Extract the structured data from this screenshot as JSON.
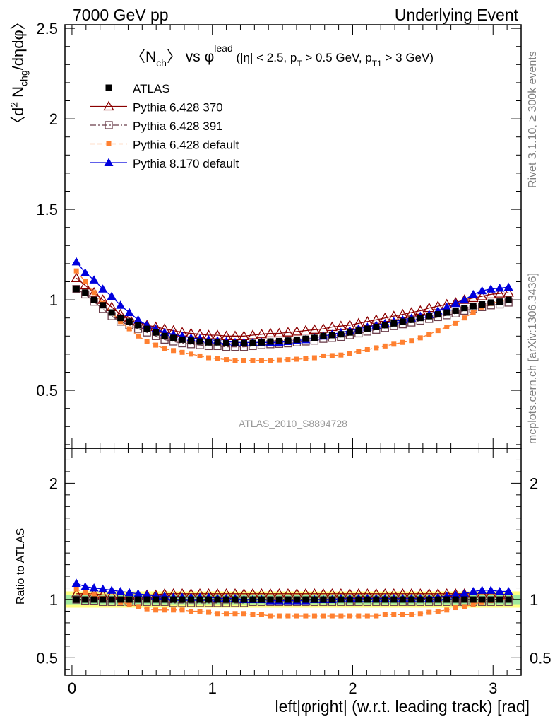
{
  "header": {
    "left": "7000 GeV pp",
    "right": "Underlying Event"
  },
  "side": {
    "rivet": "Rivet 3.1.10, ≥ 300k events",
    "mcplots": "mcplots.cern.ch [arXiv:1306.3436]"
  },
  "chart_data": {
    "type": "scatter",
    "title_parts": {
      "n": "〈N",
      "n_sub": "ch",
      "vs": "〉 vs φ",
      "sup": "lead",
      "cut_a": " (|η| < 2.5, p",
      "cut_a_sub": "T",
      "cut_b": " > 0.5 GeV, p",
      "cut_b_sub": "T1",
      "cut_c": " > 3 GeV)"
    },
    "ylabel_parts": {
      "pre": "〈d",
      "sup": "2",
      "mid": " N",
      "sub": "chg",
      "post": "/dηdφ〉"
    },
    "ratio_ylabel": "Ratio to ATLAS",
    "xlabel": "left|φright| (w.r.t. leading track) [rad]",
    "watermark": "ATLAS_2010_S8894728",
    "xlim": [
      -0.05,
      3.2
    ],
    "ylim": [
      0.18,
      2.52
    ],
    "ratio_ylim": [
      0.35,
      2.3
    ],
    "xticks": [
      0,
      1,
      2,
      3
    ],
    "yticks": [
      0.5,
      1,
      1.5,
      2,
      2.5
    ],
    "ratio_yticks": [
      0.5,
      1,
      2
    ],
    "x": [
      0.0314,
      0.0942,
      0.157,
      0.2199,
      0.2827,
      0.3456,
      0.4084,
      0.4712,
      0.5341,
      0.5969,
      0.6597,
      0.7226,
      0.7854,
      0.8482,
      0.9111,
      0.9739,
      1.0367,
      1.0996,
      1.1624,
      1.2252,
      1.2881,
      1.3509,
      1.4137,
      1.4765,
      1.5394,
      1.6022,
      1.665,
      1.7279,
      1.7907,
      1.8535,
      1.9164,
      1.9792,
      2.042,
      2.1049,
      2.1677,
      2.2305,
      2.2934,
      2.3562,
      2.419,
      2.4819,
      2.5447,
      2.6075,
      2.6704,
      2.7332,
      2.796,
      2.8588,
      2.9217,
      2.9845,
      3.0473,
      3.1102
    ],
    "series": [
      {
        "name": "ATLAS",
        "marker": "square-filled",
        "line": "none",
        "color": "#000000",
        "values": [
          1.06,
          1.04,
          1.0,
          0.97,
          0.93,
          0.9,
          0.88,
          0.86,
          0.84,
          0.82,
          0.8,
          0.79,
          0.78,
          0.775,
          0.77,
          0.765,
          0.765,
          0.76,
          0.76,
          0.76,
          0.762,
          0.765,
          0.77,
          0.772,
          0.775,
          0.78,
          0.785,
          0.79,
          0.8,
          0.805,
          0.81,
          0.82,
          0.83,
          0.84,
          0.85,
          0.86,
          0.87,
          0.88,
          0.89,
          0.9,
          0.91,
          0.92,
          0.93,
          0.94,
          0.955,
          0.965,
          0.975,
          0.985,
          0.99,
          1.0
        ],
        "ratio": [
          1,
          1,
          1,
          1,
          1,
          1,
          1,
          1,
          1,
          1,
          1,
          1,
          1,
          1,
          1,
          1,
          1,
          1,
          1,
          1,
          1,
          1,
          1,
          1,
          1,
          1,
          1,
          1,
          1,
          1,
          1,
          1,
          1,
          1,
          1,
          1,
          1,
          1,
          1,
          1,
          1,
          1,
          1,
          1,
          1,
          1,
          1,
          1,
          1,
          1
        ]
      },
      {
        "name": "Pythia 6.428 370",
        "marker": "triangle-open",
        "line": "solid",
        "color": "#8b0000",
        "values": [
          1.12,
          1.08,
          1.04,
          1.0,
          0.96,
          0.92,
          0.9,
          0.88,
          0.86,
          0.85,
          0.84,
          0.83,
          0.82,
          0.815,
          0.81,
          0.805,
          0.805,
          0.8,
          0.8,
          0.8,
          0.805,
          0.81,
          0.815,
          0.815,
          0.82,
          0.825,
          0.83,
          0.835,
          0.84,
          0.85,
          0.855,
          0.86,
          0.87,
          0.88,
          0.89,
          0.9,
          0.91,
          0.92,
          0.93,
          0.94,
          0.955,
          0.965,
          0.975,
          0.985,
          1.0,
          1.01,
          1.02,
          1.03,
          1.035,
          1.04
        ],
        "ratio": [
          1.05,
          1.05,
          1.05,
          1.04,
          1.04,
          1.04,
          1.04,
          1.04,
          1.04,
          1.04,
          1.05,
          1.05,
          1.05,
          1.05,
          1.05,
          1.05,
          1.05,
          1.05,
          1.05,
          1.05,
          1.05,
          1.05,
          1.05,
          1.05,
          1.05,
          1.05,
          1.05,
          1.05,
          1.05,
          1.05,
          1.05,
          1.05,
          1.05,
          1.05,
          1.05,
          1.05,
          1.05,
          1.05,
          1.05,
          1.05,
          1.05,
          1.05,
          1.05,
          1.05,
          1.05,
          1.05,
          1.05,
          1.05,
          1.05,
          1.04
        ]
      },
      {
        "name": "Pythia 6.428 391",
        "marker": "square-open",
        "line": "dash-dot",
        "color": "#6b3e4b",
        "values": [
          1.06,
          1.03,
          0.99,
          0.95,
          0.91,
          0.88,
          0.86,
          0.84,
          0.82,
          0.8,
          0.78,
          0.77,
          0.76,
          0.755,
          0.75,
          0.745,
          0.745,
          0.74,
          0.74,
          0.74,
          0.745,
          0.75,
          0.755,
          0.757,
          0.76,
          0.765,
          0.77,
          0.775,
          0.785,
          0.79,
          0.795,
          0.805,
          0.815,
          0.825,
          0.835,
          0.845,
          0.855,
          0.865,
          0.875,
          0.885,
          0.895,
          0.905,
          0.915,
          0.925,
          0.94,
          0.95,
          0.96,
          0.97,
          0.975,
          0.985
        ],
        "ratio": [
          1.0,
          0.99,
          0.99,
          0.98,
          0.98,
          0.98,
          0.98,
          0.98,
          0.98,
          0.98,
          0.98,
          0.97,
          0.97,
          0.97,
          0.97,
          0.97,
          0.97,
          0.97,
          0.97,
          0.97,
          0.98,
          0.98,
          0.98,
          0.98,
          0.98,
          0.98,
          0.98,
          0.98,
          0.98,
          0.98,
          0.98,
          0.98,
          0.98,
          0.98,
          0.98,
          0.98,
          0.98,
          0.98,
          0.98,
          0.98,
          0.98,
          0.98,
          0.98,
          0.98,
          0.98,
          0.98,
          0.98,
          0.98,
          0.98,
          0.98
        ]
      },
      {
        "name": "Pythia 6.428 default",
        "marker": "square-filled-small",
        "line": "dashed",
        "color": "#ff8030",
        "values": [
          1.16,
          1.1,
          1.04,
          0.98,
          0.93,
          0.88,
          0.84,
          0.8,
          0.77,
          0.75,
          0.73,
          0.72,
          0.71,
          0.7,
          0.69,
          0.68,
          0.675,
          0.67,
          0.665,
          0.665,
          0.665,
          0.665,
          0.665,
          0.668,
          0.67,
          0.672,
          0.675,
          0.68,
          0.69,
          0.692,
          0.695,
          0.705,
          0.715,
          0.725,
          0.735,
          0.745,
          0.755,
          0.765,
          0.775,
          0.79,
          0.81,
          0.83,
          0.85,
          0.87,
          0.9,
          0.93,
          0.96,
          0.98,
          0.99,
          1.0
        ],
        "ratio": [
          1.09,
          1.06,
          1.04,
          1.01,
          1.0,
          0.98,
          0.96,
          0.94,
          0.92,
          0.91,
          0.91,
          0.91,
          0.91,
          0.9,
          0.9,
          0.89,
          0.88,
          0.88,
          0.88,
          0.88,
          0.87,
          0.87,
          0.86,
          0.86,
          0.86,
          0.86,
          0.86,
          0.86,
          0.86,
          0.86,
          0.86,
          0.86,
          0.86,
          0.86,
          0.86,
          0.87,
          0.87,
          0.87,
          0.87,
          0.88,
          0.89,
          0.9,
          0.91,
          0.93,
          0.94,
          0.96,
          0.98,
          0.99,
          1.0,
          1.0
        ]
      },
      {
        "name": "Pythia 8.170 default",
        "marker": "triangle-filled",
        "line": "solid",
        "color": "#0000dd",
        "values": [
          1.21,
          1.15,
          1.11,
          1.06,
          1.02,
          0.97,
          0.93,
          0.89,
          0.86,
          0.84,
          0.82,
          0.81,
          0.8,
          0.79,
          0.785,
          0.78,
          0.775,
          0.77,
          0.765,
          0.765,
          0.765,
          0.765,
          0.765,
          0.765,
          0.77,
          0.775,
          0.78,
          0.79,
          0.8,
          0.81,
          0.82,
          0.83,
          0.84,
          0.85,
          0.86,
          0.87,
          0.88,
          0.89,
          0.9,
          0.91,
          0.92,
          0.94,
          0.96,
          0.98,
          1.0,
          1.03,
          1.05,
          1.06,
          1.065,
          1.07
        ],
        "ratio": [
          1.14,
          1.11,
          1.1,
          1.09,
          1.08,
          1.07,
          1.06,
          1.05,
          1.04,
          1.03,
          1.03,
          1.02,
          1.02,
          1.02,
          1.02,
          1.02,
          1.01,
          1.01,
          1.01,
          1.0,
          1.0,
          1.0,
          0.99,
          0.99,
          0.99,
          0.99,
          0.99,
          1.0,
          1.0,
          1.0,
          1.01,
          1.01,
          1.01,
          1.01,
          1.01,
          1.01,
          1.01,
          1.01,
          1.01,
          1.01,
          1.01,
          1.02,
          1.03,
          1.04,
          1.05,
          1.07,
          1.08,
          1.08,
          1.07,
          1.07
        ]
      }
    ],
    "band_yellow": [
      0.93,
      1.07
    ],
    "band_green": [
      0.96,
      1.04
    ],
    "legend_placement": "top-left"
  }
}
